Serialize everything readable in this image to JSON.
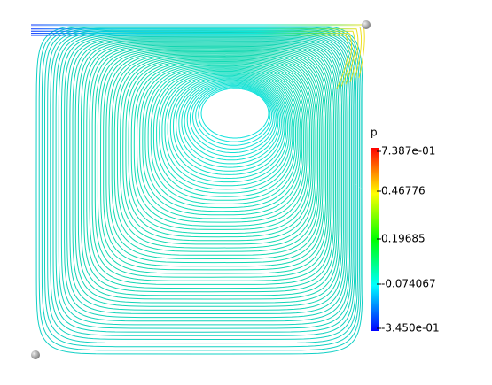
{
  "colorbar": {
    "title": "p",
    "labels": [
      "7.387e-01",
      "0.46776",
      "0.19685",
      "-0.074067",
      "-3.450e-01"
    ]
  }
}
